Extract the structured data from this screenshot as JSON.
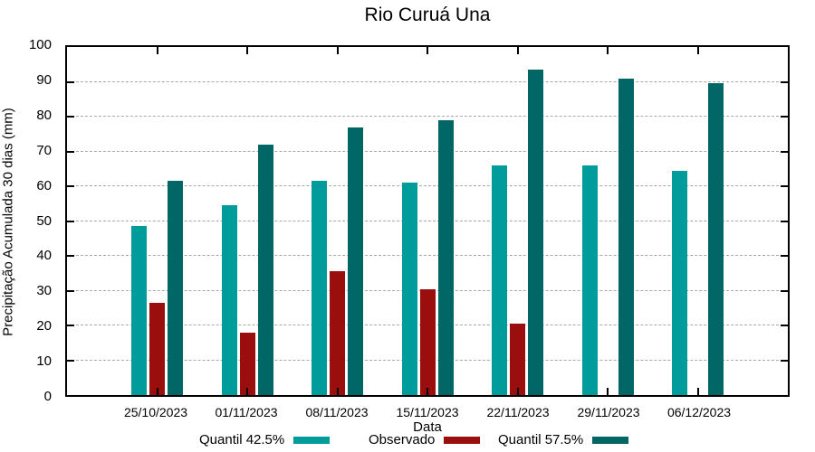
{
  "chart_data": {
    "type": "bar",
    "title": "Rio Curuá Una",
    "xlabel": "Data",
    "ylabel": "Precipitação Acumulada 30 dias (mm)",
    "ylim": [
      0,
      100
    ],
    "ytick_step": 10,
    "grid": "horizontal-dashed",
    "legend_position": "bottom",
    "categories": [
      "25/10/2023",
      "01/11/2023",
      "08/11/2023",
      "15/11/2023",
      "22/11/2023",
      "29/11/2023",
      "06/12/2023"
    ],
    "series": [
      {
        "name": "Quantil 42.5%",
        "color": "#009C9C",
        "values": [
          48.5,
          54.5,
          61.5,
          61,
          66,
          66,
          64.5
        ]
      },
      {
        "name": "Observado",
        "color": "#9B0E0E",
        "values": [
          26.5,
          18,
          35.5,
          30.5,
          20.5,
          null,
          null
        ]
      },
      {
        "name": "Quantil 57.5%",
        "color": "#006666",
        "values": [
          61.5,
          72,
          77,
          79,
          93.5,
          91,
          89.5
        ]
      }
    ],
    "colors": {
      "axis": "#000000",
      "gridline": "#a8a8a8",
      "background": "#ffffff"
    }
  }
}
